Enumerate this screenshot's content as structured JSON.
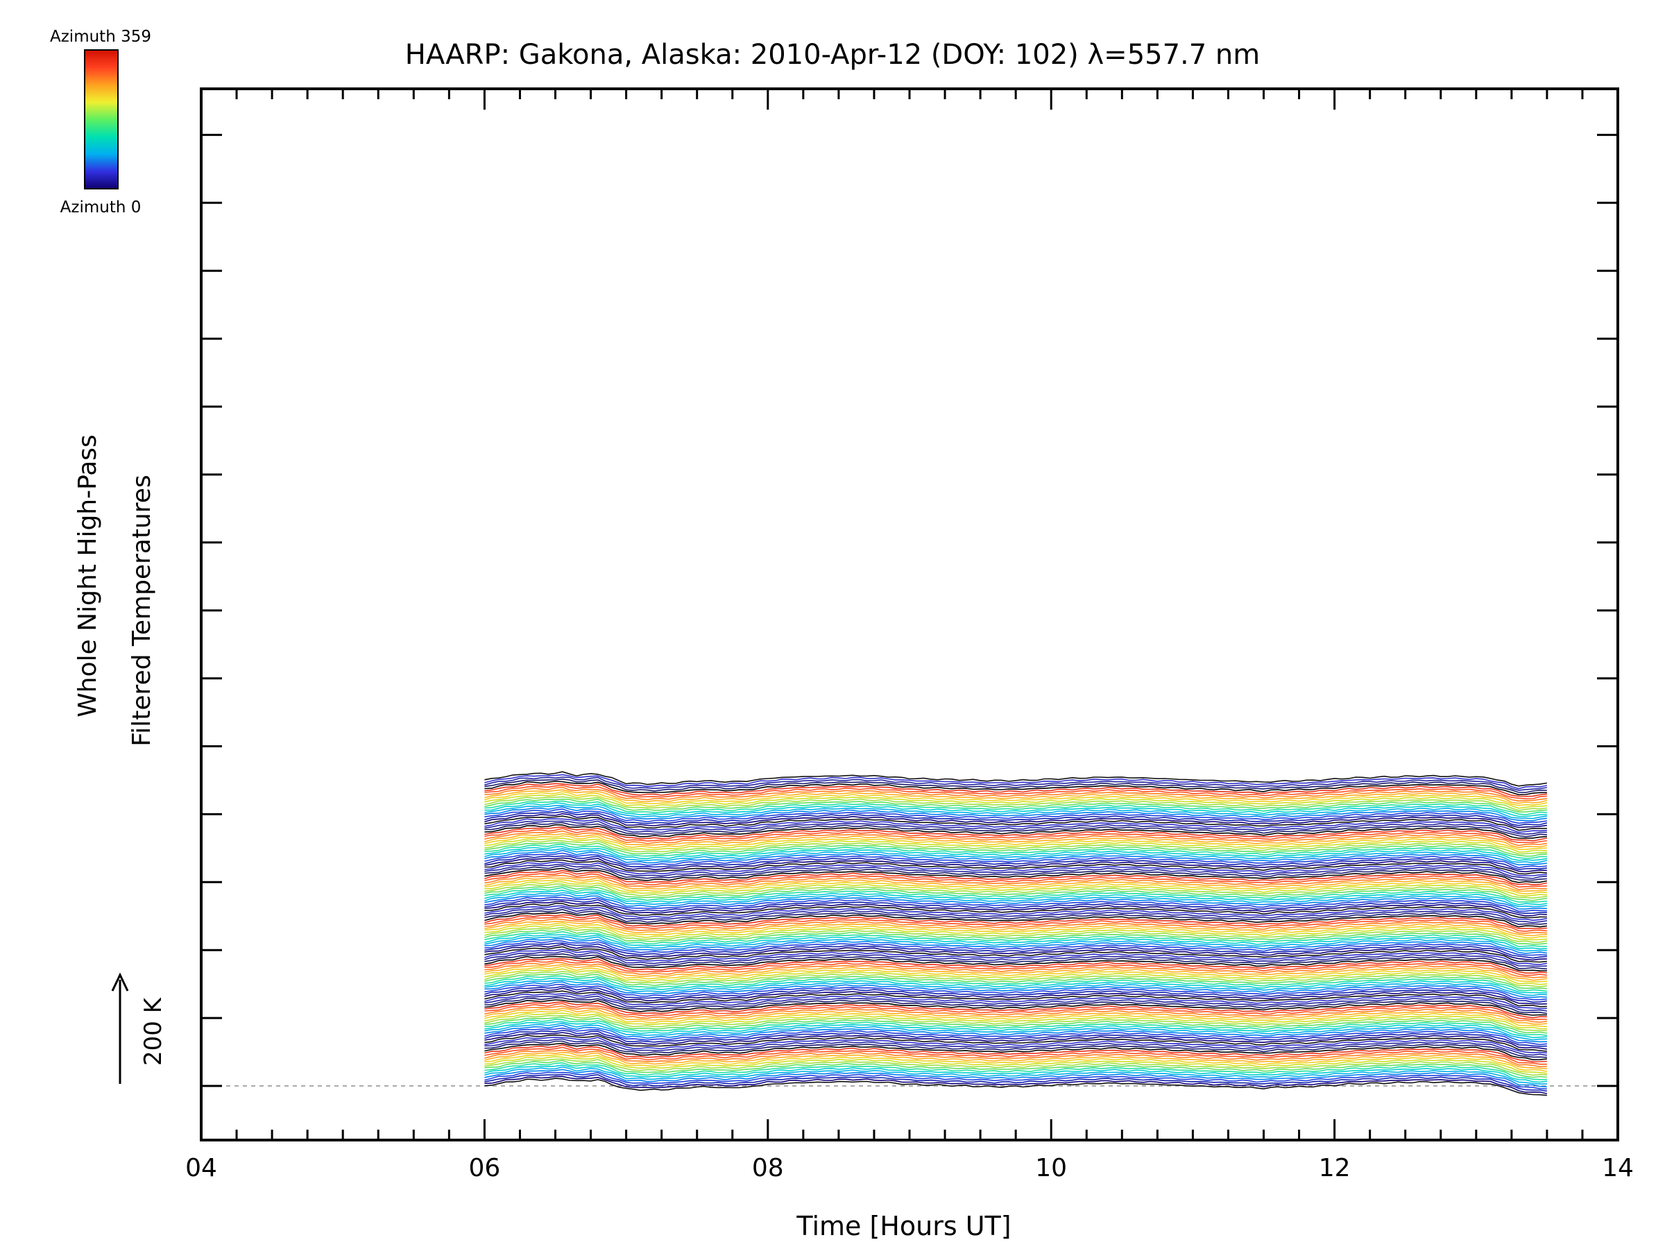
{
  "chart_data": {
    "type": "line",
    "title": "HAARP: Gakona,  Alaska: 2010-Apr-12 (DOY: 102) λ=557.7 nm",
    "xlabel": "Time [Hours UT]",
    "ylabel_line1": "Whole Night High-Pass",
    "ylabel_line2": "Filtered Temperatures",
    "xlim": [
      4,
      14
    ],
    "x_tick_labels": [
      "04",
      "06",
      "08",
      "10",
      "12",
      "14"
    ],
    "x_tick_values": [
      4,
      6,
      8,
      10,
      12,
      14
    ],
    "x_start": 6.0,
    "x_end": 13.5,
    "scale_bar_label": "200 K",
    "scale_bar_value_k": 200,
    "colorbar": {
      "top_label": "Azimuth  359",
      "bottom_label": "Azimuth  0",
      "colors": [
        "#100070",
        "#3030e0",
        "#00b0f0",
        "#00e0b0",
        "#60f060",
        "#f0f030",
        "#ffa020",
        "#ff4020",
        "#d01000"
      ]
    },
    "series_count": 141,
    "stack_offset_in_k": 14,
    "series_colors_cycle": [
      "#101010",
      "#100080",
      "#1020b0",
      "#2040e0",
      "#0080f0",
      "#00b0e8",
      "#00d0d0",
      "#20e0a0",
      "#60e060",
      "#a0e040",
      "#d0e020",
      "#f0d020",
      "#ffb020",
      "#ff8020",
      "#ff5020",
      "#e83018",
      "#000000",
      "#1a1a70",
      "#2525a0",
      "#3030d0"
    ],
    "base_profile": {
      "x": [
        6.0,
        6.15,
        6.3,
        6.45,
        6.55,
        6.65,
        6.8,
        6.9,
        7.0,
        7.15,
        7.3,
        7.45,
        7.55,
        7.7,
        7.85,
        8.0,
        8.2,
        8.4,
        8.6,
        8.8,
        9.0,
        9.2,
        9.4,
        9.6,
        9.8,
        10.0,
        10.2,
        10.4,
        10.6,
        10.8,
        11.0,
        11.2,
        11.4,
        11.5,
        11.6,
        11.8,
        12.0,
        12.1,
        12.2,
        12.4,
        12.6,
        12.8,
        13.0,
        13.1,
        13.2,
        13.3,
        13.4,
        13.5
      ],
      "y_k": [
        0,
        22,
        40,
        40,
        48,
        30,
        40,
        10,
        -20,
        -25,
        -22,
        -10,
        -5,
        -12,
        -8,
        10,
        20,
        24,
        28,
        24,
        10,
        5,
        0,
        -5,
        -3,
        5,
        12,
        18,
        14,
        8,
        0,
        -5,
        -10,
        -15,
        -8,
        -5,
        5,
        12,
        15,
        20,
        25,
        24,
        20,
        12,
        -10,
        -45,
        -55,
        -60
      ]
    }
  }
}
